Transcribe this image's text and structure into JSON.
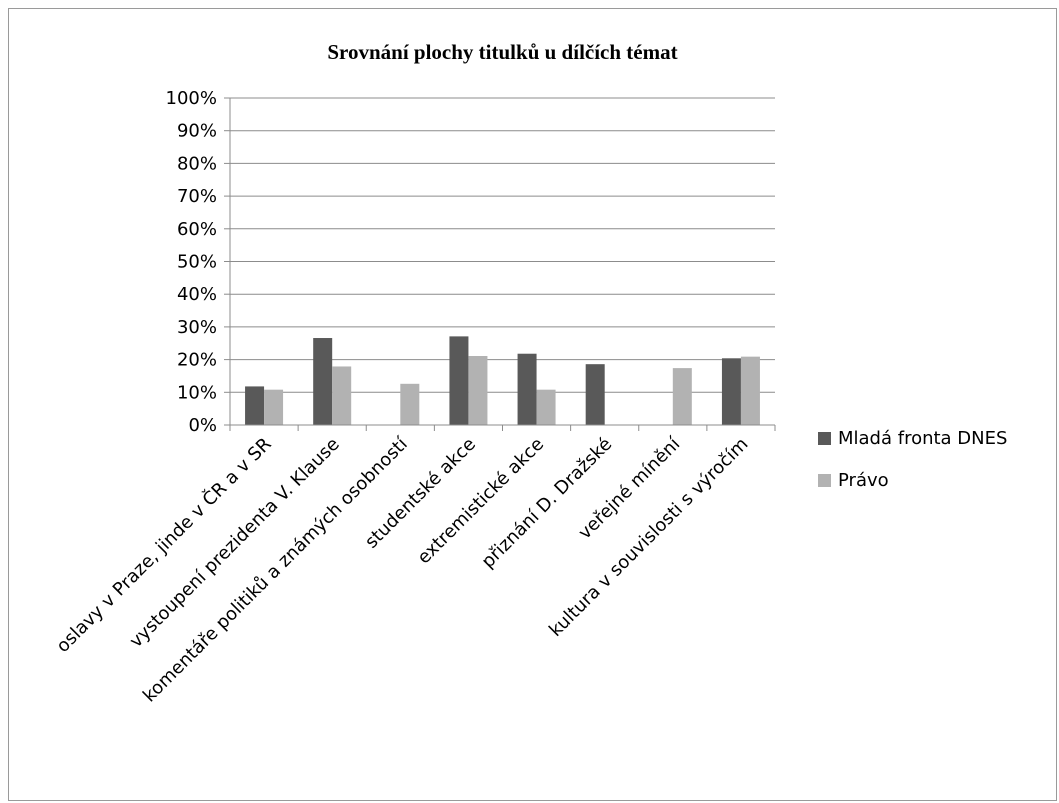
{
  "chart_data": {
    "type": "bar",
    "title": "Srovnání plochy titulků u dílčích témat",
    "xlabel": "",
    "ylabel": "",
    "ylim": [
      0,
      100
    ],
    "y_ticks": [
      "0%",
      "10%",
      "20%",
      "30%",
      "40%",
      "50%",
      "60%",
      "70%",
      "80%",
      "90%",
      "100%"
    ],
    "grid": true,
    "legend_position": "right",
    "categories": [
      "oslavy v Praze, jinde v ČR a v SR",
      "vystoupení prezidenta V. Klause",
      "komentáře politiků a známých osobností",
      "studentské akce",
      "extremistické akce",
      "přiznání D. Dražské",
      "veřejné mínění",
      "kultura v souvislosti s výročím"
    ],
    "series": [
      {
        "name": "Mladá fronta DNES",
        "color": "#595959",
        "values": [
          11.8,
          26.6,
          0,
          27.1,
          21.8,
          18.6,
          0,
          20.4
        ]
      },
      {
        "name": "Právo",
        "color": "#b2b2b2",
        "values": [
          10.8,
          17.9,
          12.6,
          21.1,
          10.8,
          0,
          17.4,
          20.9
        ]
      }
    ]
  }
}
